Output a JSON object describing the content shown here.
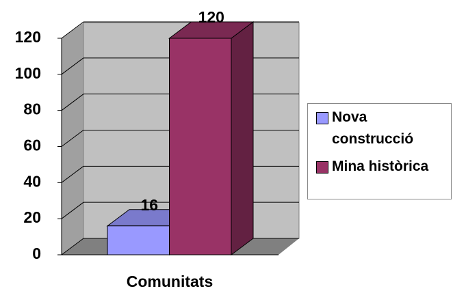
{
  "chart_data": {
    "type": "bar",
    "categories": [
      "Comunitats"
    ],
    "series": [
      {
        "name": "Nova construcció",
        "color": "#9999ff",
        "values": [
          16
        ]
      },
      {
        "name": "Mina històrica",
        "color": "#993366",
        "values": [
          120
        ]
      }
    ],
    "ylim": [
      0,
      120
    ],
    "yticks": [
      0,
      20,
      40,
      60,
      80,
      100,
      120
    ],
    "grid": true,
    "legend": "right"
  }
}
